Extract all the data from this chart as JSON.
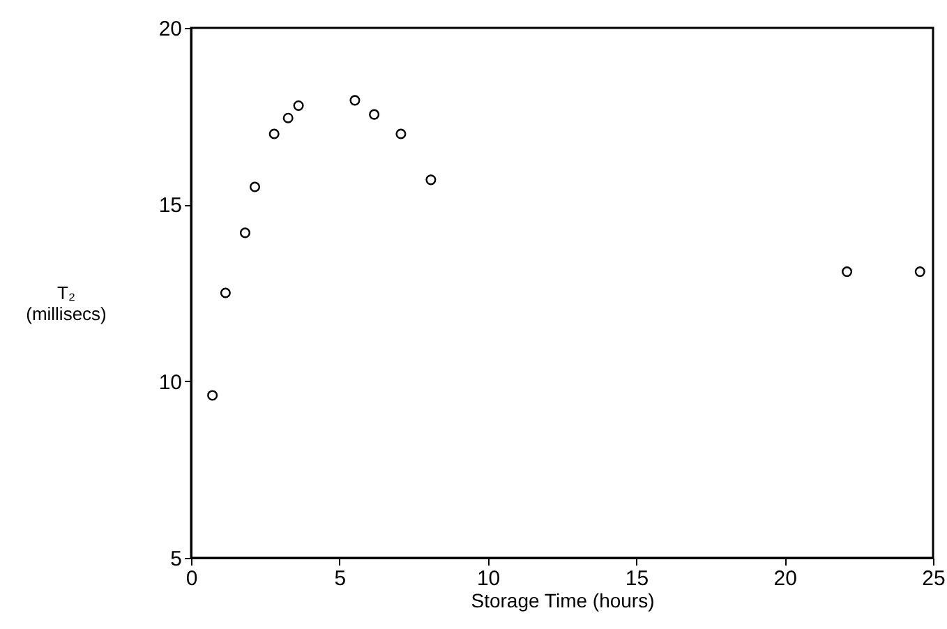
{
  "chart_data": {
    "type": "scatter",
    "xlabel": "Storage Time (hours)",
    "ylabel": "T₂\n(millisecs)",
    "x": [
      0.72,
      1.16,
      1.82,
      2.15,
      2.8,
      3.27,
      3.62,
      5.52,
      6.17,
      7.07,
      8.08,
      22.1,
      24.56
    ],
    "series": [
      {
        "color": "#000000",
        "values": [
          9.6,
          12.5,
          14.2,
          15.5,
          17.0,
          17.45,
          17.8,
          17.95,
          17.55,
          17.0,
          15.7,
          13.1,
          13.1
        ]
      }
    ],
    "xlim": [
      0,
      25
    ],
    "xticks": [
      0,
      5,
      10,
      15,
      20,
      25
    ],
    "ylim": [
      5,
      20
    ],
    "yticks": [
      5,
      10,
      15,
      20
    ],
    "marker": "circle",
    "grid": false,
    "legend": false
  }
}
